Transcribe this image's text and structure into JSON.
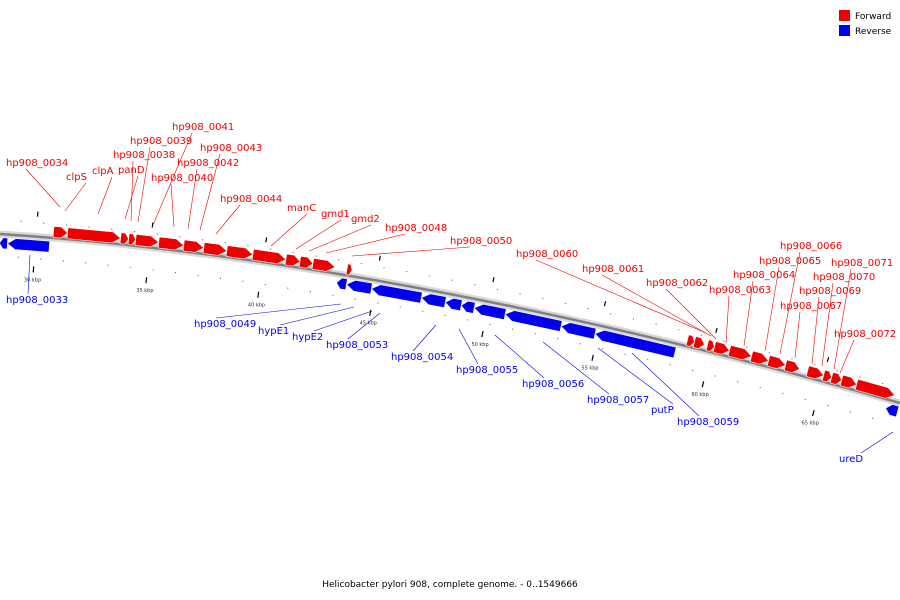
{
  "map": {
    "caption": "Helicobacter pylori 908, complete genome. - 0..1549666",
    "colors": {
      "forward": "#ee0000",
      "reverse": "#0000ee",
      "backbone": "#808080"
    }
  },
  "legend": [
    {
      "label": "Forward",
      "color": "#ee0000"
    },
    {
      "label": "Reverse",
      "color": "#0000ee"
    }
  ],
  "ticks": [
    "30 kbp",
    "35 kbp",
    "40 kbp",
    "45 kbp",
    "50 kbp",
    "55 kbp",
    "60 kbp",
    "65 kbp"
  ],
  "forward_genes": [
    "hp908_0034",
    "clpS",
    "clpA",
    "panD",
    "hp908_0038",
    "hp908_0039",
    "hp908_0041",
    "hp908_0040",
    "hp908_0042",
    "hp908_0043",
    "hp908_0044",
    "manC",
    "gmd1",
    "gmd2",
    "hp908_0048",
    "hp908_0050",
    "hp908_0060",
    "hp908_0061",
    "hp908_0062",
    "hp908_0063",
    "hp908_0064",
    "hp908_0065",
    "hp908_0066",
    "hp908_0067",
    "hp908_0069",
    "hp908_0070",
    "hp908_0071",
    "hp908_0072"
  ],
  "reverse_genes": [
    "hp908_0033",
    "hp908_0049",
    "hypE1",
    "hypE2",
    "hp908_0053",
    "hp908_0054",
    "hp908_0055",
    "hp908_0056",
    "hp908_0057",
    "putP",
    "hp908_0059",
    "ureD"
  ]
}
